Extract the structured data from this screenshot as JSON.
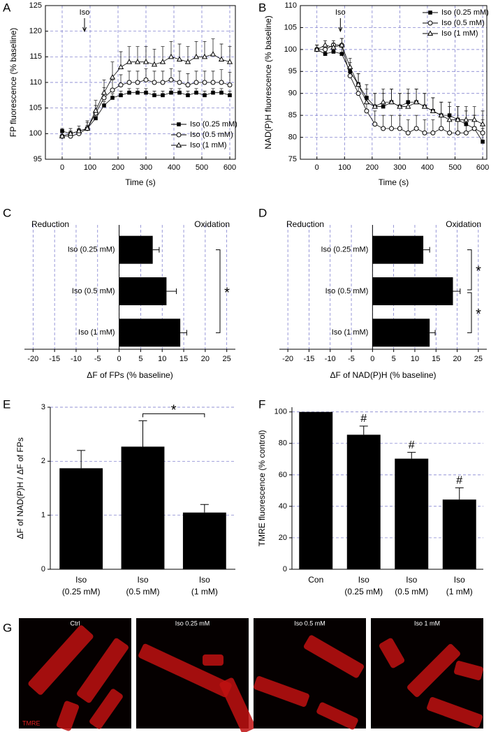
{
  "chart_data": [
    {
      "panel": "A",
      "type": "line",
      "xlabel": "Time (s)",
      "ylabel": "FP fluorescence (% baseline)",
      "xlim": [
        -60,
        620
      ],
      "xticks": [
        0,
        100,
        200,
        300,
        400,
        500,
        600
      ],
      "ylim": [
        95,
        125
      ],
      "yticks": [
        95,
        100,
        105,
        110,
        115,
        120,
        125
      ],
      "grid": "both",
      "legend": "lower right",
      "annotation": {
        "text": "Iso",
        "x": 80
      },
      "x": [
        0,
        30,
        60,
        90,
        120,
        150,
        180,
        210,
        240,
        270,
        300,
        330,
        360,
        390,
        420,
        450,
        480,
        510,
        540,
        570,
        600
      ],
      "series": [
        {
          "name": "Iso (0.25 mM)",
          "color": "#000000",
          "marker": "square-filled",
          "values": [
            100.5,
            100,
            100.5,
            101,
            103,
            105.5,
            107,
            107.5,
            108,
            108,
            108,
            107.5,
            107.5,
            108,
            108,
            107.5,
            108,
            107.5,
            108,
            108,
            107.5
          ],
          "errors": [
            0.5,
            0.5,
            0.5,
            0.6,
            0.8,
            0.8,
            0.8,
            0.8,
            0.8,
            0.8,
            0.8,
            0.8,
            0.8,
            0.8,
            0.8,
            0.8,
            0.8,
            0.8,
            0.8,
            0.8,
            0.8
          ]
        },
        {
          "name": "Iso (0.5 mM)",
          "color": "#000000",
          "marker": "circle-open",
          "values": [
            99.5,
            99.5,
            100,
            101,
            104,
            107,
            108.5,
            109.5,
            110,
            110,
            110.5,
            110,
            110,
            110.5,
            110,
            109.5,
            110,
            110,
            110,
            110,
            109.5
          ],
          "errors": [
            1,
            1,
            1,
            1.2,
            1.5,
            2,
            2,
            2,
            2.2,
            2.2,
            2.2,
            2.2,
            2.2,
            2.2,
            2.2,
            2.2,
            2.2,
            2.2,
            2.2,
            2.5,
            2.5
          ]
        },
        {
          "name": "Iso (1 mM)",
          "color": "#000000",
          "marker": "triangle-open",
          "values": [
            99.5,
            100,
            100.5,
            101,
            104.5,
            108,
            111,
            113,
            114,
            114,
            114,
            113.5,
            114,
            115,
            114.5,
            114,
            115,
            115,
            115.5,
            114.5,
            114
          ],
          "errors": [
            1,
            1,
            1,
            1.5,
            2,
            2.5,
            3,
            3,
            3,
            3,
            3,
            3,
            3,
            3,
            3,
            3,
            3,
            3,
            3,
            3,
            3
          ]
        }
      ]
    },
    {
      "panel": "B",
      "type": "line",
      "xlabel": "Time (s)",
      "ylabel": "NAD(P)H fluorescence (% baseline)",
      "xlim": [
        -60,
        615
      ],
      "xticks": [
        0,
        100,
        200,
        300,
        400,
        500,
        600
      ],
      "ylim": [
        75,
        110
      ],
      "yticks": [
        75,
        80,
        85,
        90,
        95,
        100,
        105,
        110
      ],
      "grid": "both",
      "legend": "upper right",
      "annotation": {
        "text": "Iso",
        "x": 85
      },
      "x": [
        0,
        30,
        60,
        90,
        120,
        150,
        180,
        210,
        240,
        270,
        300,
        330,
        360,
        390,
        420,
        450,
        480,
        510,
        540,
        570,
        600
      ],
      "series": [
        {
          "name": "Iso (0.25 mM)",
          "color": "#000000",
          "marker": "square-filled",
          "values": [
            100,
            99,
            99.5,
            99,
            95,
            92,
            89,
            87,
            87,
            88,
            87,
            88,
            88,
            87,
            86,
            85,
            85,
            84,
            83,
            82,
            79
          ],
          "errors": [
            1,
            1,
            1,
            1.5,
            2,
            2.5,
            3,
            3,
            3,
            3,
            3,
            3,
            3,
            3,
            3,
            3,
            3,
            3,
            3,
            3,
            3
          ]
        },
        {
          "name": "Iso (0.5 mM)",
          "color": "#000000",
          "marker": "circle-open",
          "values": [
            100,
            100,
            101,
            101,
            94,
            90,
            86,
            83,
            82,
            82,
            82,
            81,
            82,
            81,
            81,
            82,
            81,
            81,
            81,
            82,
            81
          ],
          "errors": [
            1,
            1,
            1,
            1.5,
            2,
            2.5,
            3,
            3,
            3,
            3,
            3,
            3,
            3,
            3,
            3,
            3,
            3,
            3,
            3,
            3,
            3
          ]
        },
        {
          "name": "Iso (1 mM)",
          "color": "#000000",
          "marker": "triangle-open",
          "values": [
            100,
            101,
            100.5,
            101,
            96,
            92,
            88,
            87,
            88,
            88,
            87,
            87,
            88,
            87,
            86,
            85,
            84,
            84,
            84,
            84,
            83
          ],
          "errors": [
            1,
            1,
            1,
            1.5,
            2,
            2.5,
            3,
            3,
            3,
            3,
            3,
            3,
            3,
            3,
            3,
            3,
            3,
            3,
            3,
            3,
            3
          ]
        }
      ]
    },
    {
      "panel": "C",
      "type": "hbar",
      "xlabel": "ΔF of FPs (% baseline)",
      "annotations": [
        "Reduction",
        "Oxidation"
      ],
      "xlim": [
        -22,
        27
      ],
      "xticks": [
        -20,
        -15,
        -10,
        -5,
        0,
        5,
        10,
        15,
        20,
        25
      ],
      "grid": "x",
      "color": "#000000",
      "categories": [
        "Iso (0.25 mM)",
        "Iso (0.5 mM)",
        "Iso (1 mM)"
      ],
      "values": [
        7.8,
        11,
        14.2
      ],
      "errors": [
        1.5,
        2.3,
        1.5
      ],
      "significance": [
        {
          "from": 0,
          "to": 2,
          "label": "*"
        }
      ]
    },
    {
      "panel": "D",
      "type": "hbar",
      "xlabel": "ΔF of NAD(P)H (% baseline)",
      "annotations": [
        "Reduction",
        "Oxidation"
      ],
      "xlim": [
        -22,
        27
      ],
      "xticks": [
        -20,
        -15,
        -10,
        -5,
        0,
        5,
        10,
        15,
        20,
        25
      ],
      "grid": "x",
      "color": "#000000",
      "categories": [
        "Iso (0.25 mM)",
        "Iso (0.5 mM)",
        "Iso (1 mM)"
      ],
      "values": [
        12,
        19,
        13.5
      ],
      "errors": [
        1.5,
        1.7,
        1.3
      ],
      "significance": [
        {
          "from": 0,
          "to": 1,
          "label": "*"
        },
        {
          "from": 1,
          "to": 2,
          "label": "*"
        }
      ]
    },
    {
      "panel": "E",
      "type": "bar",
      "ylabel": "ΔF of NAD(P)H / ΔF of FPs",
      "ylim": [
        0,
        3
      ],
      "yticks": [
        0,
        1,
        2,
        3
      ],
      "grid": "y",
      "color": "#000000",
      "categories": [
        [
          "Iso",
          "(0.25 mM)"
        ],
        [
          "Iso",
          "(0.5 mM)"
        ],
        [
          "Iso",
          "(1 mM)"
        ]
      ],
      "values": [
        1.87,
        2.27,
        1.05
      ],
      "errors": [
        0.33,
        0.48,
        0.15
      ],
      "significance": [
        {
          "from": 1,
          "to": 2,
          "label": "*"
        }
      ]
    },
    {
      "panel": "F",
      "type": "bar",
      "ylabel": "TMRE fluorescence (% control)",
      "ylim": [
        0,
        103
      ],
      "yticks": [
        0,
        20,
        40,
        60,
        80,
        100
      ],
      "grid": "y",
      "color": "#000000",
      "categories": [
        [
          "Con"
        ],
        [
          "Iso",
          "(0.25 mM)"
        ],
        [
          "Iso",
          "(0.5 mM)"
        ],
        [
          "Iso",
          "(1 mM)"
        ]
      ],
      "values": [
        100,
        85.5,
        70.3,
        44.3
      ],
      "errors": [
        null,
        5.5,
        4,
        7.5
      ],
      "markers": [
        null,
        "#",
        "#",
        "#"
      ]
    }
  ],
  "micrographs": {
    "panel": "G",
    "stain": "TMRE",
    "images": [
      {
        "title": "Ctrl"
      },
      {
        "title": "Iso 0.25 mM"
      },
      {
        "title": "Iso 0.5 mM"
      },
      {
        "title": "Iso 1 mM"
      }
    ]
  }
}
